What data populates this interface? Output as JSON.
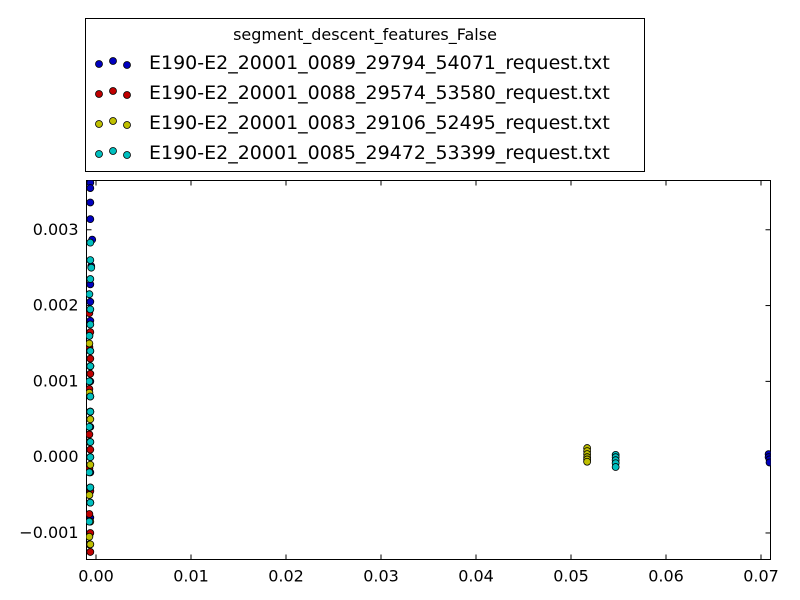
{
  "chart_data": {
    "type": "scatter",
    "title": "",
    "xlabel": "",
    "ylabel": "",
    "xlim": [
      -0.001,
      0.071
    ],
    "ylim": [
      -0.00135,
      0.00365
    ],
    "x_ticks": [
      0.0,
      0.01,
      0.02,
      0.03,
      0.04,
      0.05,
      0.06,
      0.07
    ],
    "x_tick_labels": [
      "0.00",
      "0.01",
      "0.02",
      "0.03",
      "0.04",
      "0.05",
      "0.06",
      "0.07"
    ],
    "y_ticks": [
      -0.001,
      0.0,
      0.001,
      0.002,
      0.003
    ],
    "y_tick_labels": [
      "−0.001",
      "0.000",
      "0.001",
      "0.002",
      "0.003"
    ],
    "grid": false,
    "legend": {
      "title": "segment_descent_features_False",
      "placement": "top, above plot"
    },
    "series": [
      {
        "name": "E190-E2_20001_0089_29794_54071_request.txt",
        "color": "#0000bf",
        "points": [
          [
            -0.0006,
            0.00362
          ],
          [
            -0.0006,
            0.00355
          ],
          [
            -0.0006,
            0.00336
          ],
          [
            -0.0006,
            0.00314
          ],
          [
            -0.0004,
            0.00287
          ],
          [
            -0.0005,
            0.00252
          ],
          [
            -0.0006,
            0.00228
          ],
          [
            -0.0006,
            0.00205
          ],
          [
            -0.0006,
            0.0018
          ],
          [
            -0.0007,
            0.0016
          ],
          [
            -0.0006,
            0.0014
          ],
          [
            -0.0006,
            0.0012
          ],
          [
            -0.0006,
            0.001
          ],
          [
            -0.0006,
            0.0008
          ],
          [
            -0.0006,
            0.0006
          ],
          [
            -0.0006,
            0.0004
          ],
          [
            -0.0006,
            0.0002
          ],
          [
            -0.0006,
            0.0
          ],
          [
            -0.0006,
            -0.0002
          ],
          [
            -0.0006,
            -0.0004
          ],
          [
            -0.0006,
            -0.0006
          ],
          [
            -0.0006,
            -0.0008
          ],
          [
            0.0708,
            4e-05
          ],
          [
            0.0708,
            0.0
          ],
          [
            0.0709,
            -3e-05
          ],
          [
            0.0709,
            -7e-05
          ]
        ]
      },
      {
        "name": "E190-E2_20001_0088_29574_53580_request.txt",
        "color": "#bf0000",
        "points": [
          [
            -0.0007,
            0.0019
          ],
          [
            -0.0006,
            0.00165
          ],
          [
            -0.0007,
            0.00145
          ],
          [
            -0.0006,
            0.0013
          ],
          [
            -0.0006,
            0.0011
          ],
          [
            -0.0007,
            0.0009
          ],
          [
            -0.0006,
            0.0006
          ],
          [
            -0.0007,
            0.0003
          ],
          [
            -0.0006,
            0.0001
          ],
          [
            -0.0007,
            -0.00015
          ],
          [
            -0.0006,
            -0.00045
          ],
          [
            -0.0007,
            -0.00075
          ],
          [
            -0.0006,
            -0.001
          ],
          [
            -0.0007,
            -0.00115
          ],
          [
            -0.0006,
            -0.00125
          ]
        ]
      },
      {
        "name": "E190-E2_20001_0083_29106_52495_request.txt",
        "color": "#bfbf00",
        "points": [
          [
            -0.0007,
            0.0015
          ],
          [
            -0.0006,
            0.0012
          ],
          [
            -0.0007,
            0.00085
          ],
          [
            -0.0006,
            0.0005
          ],
          [
            -0.0007,
            0.0002
          ],
          [
            -0.0006,
            -0.0001
          ],
          [
            -0.0007,
            -0.0005
          ],
          [
            -0.0006,
            -0.00085
          ],
          [
            -0.0007,
            -0.00105
          ],
          [
            -0.0006,
            -0.00115
          ],
          [
            0.0517,
            0.00012
          ],
          [
            0.0517,
            8e-05
          ],
          [
            0.0517,
            4e-05
          ],
          [
            0.0517,
            0.0
          ],
          [
            0.0517,
            -3e-05
          ],
          [
            0.0517,
            -6e-05
          ]
        ]
      },
      {
        "name": "E190-E2_20001_0085_29472_53399_request.txt",
        "color": "#00bfbf",
        "points": [
          [
            -0.0006,
            0.00283
          ],
          [
            -0.0006,
            0.0026
          ],
          [
            -0.0005,
            0.0025
          ],
          [
            -0.0006,
            0.00235
          ],
          [
            -0.0007,
            0.00215
          ],
          [
            -0.0006,
            0.00195
          ],
          [
            -0.0006,
            0.00175
          ],
          [
            -0.0007,
            0.0016
          ],
          [
            -0.0006,
            0.0014
          ],
          [
            -0.0006,
            0.0012
          ],
          [
            -0.0007,
            0.001
          ],
          [
            -0.0006,
            0.0008
          ],
          [
            -0.0006,
            0.0006
          ],
          [
            -0.0007,
            0.0004
          ],
          [
            -0.0006,
            0.0002
          ],
          [
            -0.0006,
            0.0
          ],
          [
            -0.0007,
            -0.0002
          ],
          [
            -0.0006,
            -0.0004
          ],
          [
            -0.0006,
            -0.0006
          ],
          [
            -0.0007,
            -0.00085
          ],
          [
            0.0547,
            3e-05
          ],
          [
            0.0547,
            0.0
          ],
          [
            0.0547,
            -4e-05
          ],
          [
            0.0547,
            -8e-05
          ],
          [
            0.0547,
            -0.00013
          ]
        ]
      }
    ]
  }
}
